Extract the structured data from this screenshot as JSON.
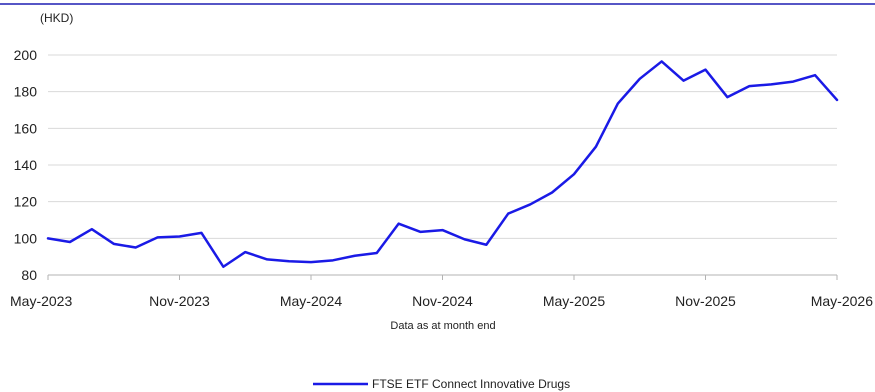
{
  "chart_data": {
    "type": "line",
    "unit_label": "(HKD)",
    "note": "Data as at month end",
    "ylim": [
      80,
      200
    ],
    "y_ticks": [
      "80",
      "100",
      "120",
      "140",
      "160",
      "180",
      "200"
    ],
    "x_ticks": [
      "May-2023",
      "Nov-2023",
      "May-2024",
      "Nov-2024",
      "May-2025",
      "Nov-2025",
      "May-2026"
    ],
    "grid": true,
    "legend_position": "bottom",
    "colors": {
      "line": "#1a1ae6",
      "grid": "#d9d9d9",
      "axis": "#b3b3b3",
      "top_rule": "#1f1fb4"
    },
    "series": [
      {
        "name": "FTSE ETF Connect Innovative Drugs",
        "x": [
          "May-2023",
          "Jun-2023",
          "Jul-2023",
          "Aug-2023",
          "Sep-2023",
          "Oct-2023",
          "Nov-2023",
          "Dec-2023",
          "Jan-2024",
          "Feb-2024",
          "Mar-2024",
          "Apr-2024",
          "May-2024",
          "Jun-2024",
          "Jul-2024",
          "Aug-2024",
          "Sep-2024",
          "Oct-2024",
          "Nov-2024",
          "Dec-2024",
          "Jan-2025",
          "Feb-2025",
          "Mar-2025",
          "Apr-2025",
          "May-2025",
          "Jun-2025",
          "Jul-2025",
          "Aug-2025",
          "Sep-2025",
          "Oct-2025",
          "Nov-2025",
          "Dec-2025",
          "Jan-2026",
          "Feb-2026",
          "Mar-2026",
          "Apr-2026",
          "May-2026"
        ],
        "values": [
          100,
          98,
          105,
          97,
          95,
          100.5,
          101,
          103,
          84.5,
          92.5,
          88.5,
          87.5,
          87,
          88,
          90.5,
          92,
          108,
          103.5,
          104.5,
          99.5,
          96.5,
          113.5,
          118.5,
          125,
          135,
          150,
          173.5,
          187,
          196.5,
          186,
          192,
          177,
          183,
          184,
          185.5,
          189,
          175.5
        ]
      }
    ]
  }
}
